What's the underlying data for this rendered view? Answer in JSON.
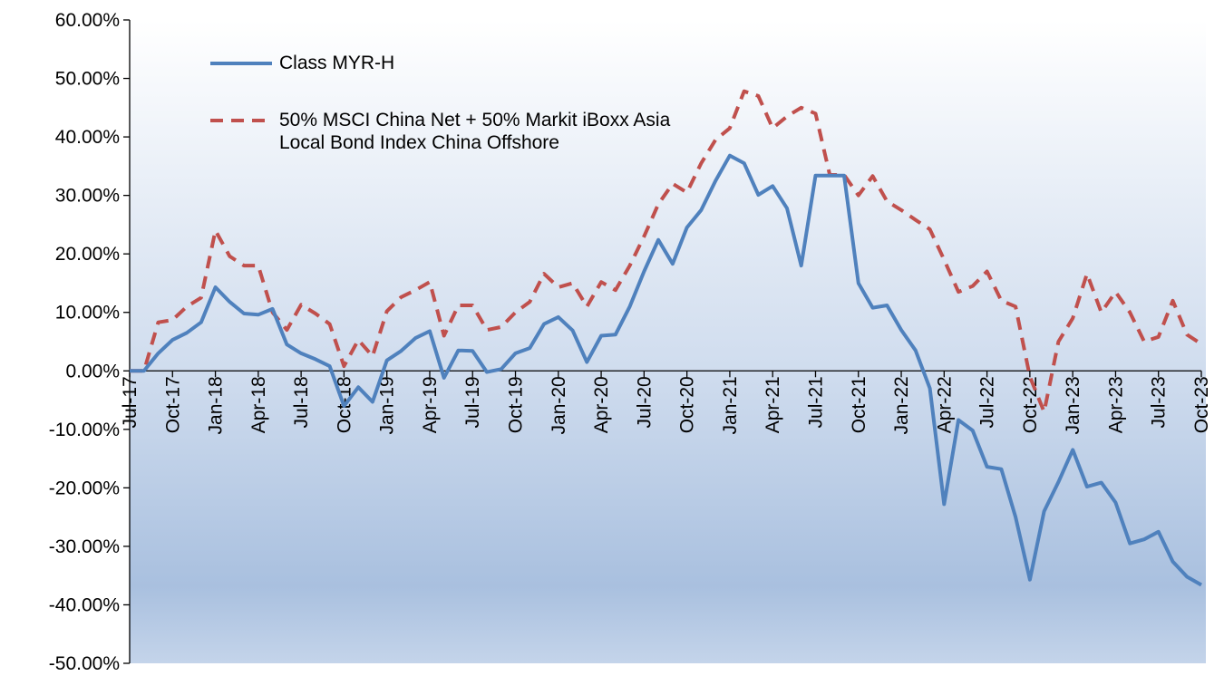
{
  "chart_data": {
    "type": "line",
    "categories": [
      "Jul-17",
      null,
      null,
      "Oct-17",
      null,
      null,
      "Jan-18",
      null,
      null,
      "Apr-18",
      null,
      null,
      "Jul-18",
      null,
      null,
      "Oct-18",
      null,
      null,
      "Jan-19",
      null,
      null,
      "Apr-19",
      null,
      null,
      "Jul-19",
      null,
      null,
      "Oct-19",
      null,
      null,
      "Jan-20",
      null,
      null,
      "Apr-20",
      null,
      null,
      "Jul-20",
      null,
      null,
      "Oct-20",
      null,
      null,
      "Jan-21",
      null,
      null,
      "Apr-21",
      null,
      null,
      "Jul-21",
      null,
      null,
      "Oct-21",
      null,
      null,
      "Jan-22",
      null,
      null,
      "Apr-22",
      null,
      null,
      "Jul-22",
      null,
      null,
      "Oct-22",
      null,
      null,
      "Jan-23",
      null,
      null,
      "Apr-23",
      null,
      null,
      "Jul-23",
      null,
      null,
      "Oct-23"
    ],
    "series": [
      {
        "name": "Class MYR-H",
        "color": "#4f81bd",
        "dash": false,
        "values": [
          0,
          0,
          3,
          5.3,
          6.5,
          8.3,
          14.3,
          11.8,
          9.8,
          9.6,
          10.6,
          4.5,
          3,
          2,
          0.8,
          -6,
          -2.8,
          -5.3,
          1.8,
          3.4,
          5.6,
          6.8,
          -1.2,
          3.5,
          3.4,
          -0.2,
          0.3,
          3,
          3.9,
          8,
          9.2,
          6.9,
          1.5,
          6,
          6.2,
          11,
          17,
          22.4,
          18.3,
          24.5,
          27.5,
          32.5,
          36.8,
          35.5,
          30.1,
          31.6,
          27.8,
          18,
          33.4,
          33.4,
          33.4,
          15,
          10.8,
          11.2,
          7,
          3.5,
          -3,
          -22.8,
          -8.4,
          -10.2,
          -16.4,
          -16.8,
          -25,
          -35.7,
          -24,
          -19,
          -13.5,
          -19.8,
          -19.1,
          -22.5,
          -29.5,
          -28.8,
          -27.5,
          -32.6,
          -35.2,
          -36.6
        ]
      },
      {
        "name": "50% MSCI China Net + 50% Markit iBoxx Asia Local Bond Index China Offshore",
        "color": "#c0504d",
        "dash": true,
        "values": [
          0,
          0,
          8.3,
          8.7,
          11,
          12.5,
          24,
          19.6,
          18,
          18,
          10,
          7,
          11.3,
          9.8,
          8,
          0.8,
          5.3,
          2.5,
          10.2,
          12.6,
          13.8,
          15.2,
          6,
          11.2,
          11.2,
          7,
          7.5,
          10,
          11.8,
          16.6,
          14.3,
          15,
          11,
          15.2,
          13.8,
          18,
          23,
          28.5,
          32,
          30.5,
          35.5,
          39.5,
          41.5,
          47.8,
          47,
          41.5,
          43.5,
          45,
          44,
          33.5,
          33.5,
          30,
          33.3,
          29,
          27.5,
          25.8,
          24.2,
          19,
          13.5,
          14.5,
          17,
          12,
          11,
          -1,
          -7,
          5,
          9,
          16.6,
          10,
          13.5,
          10,
          5,
          5.8,
          12,
          6.2,
          4.6
        ]
      }
    ],
    "ylim": [
      -50,
      60
    ],
    "yticks": [
      {
        "value": -50,
        "label": "-50.00%"
      },
      {
        "value": -40,
        "label": "-40.00%"
      },
      {
        "value": -30,
        "label": "-30.00%"
      },
      {
        "value": -20,
        "label": "-20.00%"
      },
      {
        "value": -10,
        "label": "-10.00%"
      },
      {
        "value": 0,
        "label": "0.00%"
      },
      {
        "value": 10,
        "label": "10.00%"
      },
      {
        "value": 20,
        "label": "20.00%"
      },
      {
        "value": 30,
        "label": "30.00%"
      },
      {
        "value": 40,
        "label": "40.00%"
      },
      {
        "value": 50,
        "label": "50.00%"
      },
      {
        "value": 60,
        "label": "60.00%"
      }
    ],
    "grid": false
  }
}
